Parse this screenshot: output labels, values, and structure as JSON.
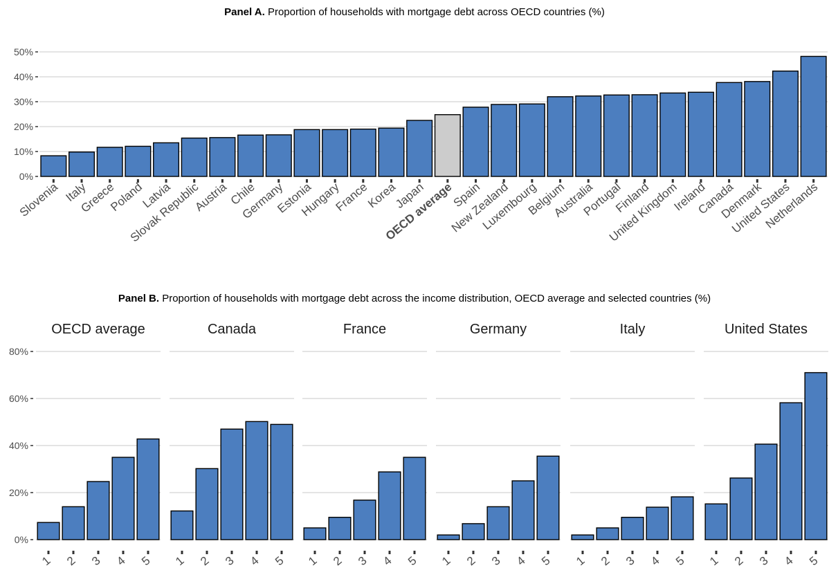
{
  "panel_a": {
    "title_bold": "Panel A.",
    "title_rest": " Proportion of households with mortgage debt across OECD countries (%)"
  },
  "panel_b": {
    "title_bold": "Panel B.",
    "title_rest": " Proportion of households with mortgage debt across the income distribution, OECD average and selected countries (%)"
  },
  "colors": {
    "bar": "#4c7ebf",
    "highlight": "#cccccc",
    "grid": "#d4d4d4",
    "outline": "#000000"
  },
  "chart_data": [
    {
      "type": "bar",
      "ylim": [
        0,
        52
      ],
      "yticks": [
        0,
        10,
        20,
        30,
        40,
        50
      ],
      "ytick_labels": [
        "0%",
        "10%",
        "20%",
        "30%",
        "40%",
        "50%"
      ],
      "grid": true,
      "highlight": "OECD average",
      "categories": [
        "Slovenia",
        "Italy",
        "Greece",
        "Poland",
        "Latvia",
        "Slovak Republic",
        "Austria",
        "Chile",
        "Germany",
        "Estonia",
        "Hungary",
        "France",
        "Korea",
        "Japan",
        "OECD average",
        "Spain",
        "New Zealand",
        "Luxembourg",
        "Belgium",
        "Australia",
        "Portugal",
        "Finland",
        "United Kingdom",
        "Ireland",
        "Canada",
        "Denmark",
        "United States",
        "Netherlands"
      ],
      "values": [
        8.3,
        9.8,
        11.7,
        12.1,
        13.5,
        15.4,
        15.6,
        16.6,
        16.7,
        18.8,
        18.8,
        19.0,
        19.4,
        22.5,
        24.8,
        27.8,
        28.9,
        29.1,
        32.0,
        32.3,
        32.7,
        32.8,
        33.5,
        33.8,
        37.7,
        38.1,
        42.3,
        48.2
      ]
    },
    {
      "type": "bar",
      "ylim": [
        0,
        80
      ],
      "yticks": [
        0,
        20,
        40,
        60,
        80
      ],
      "ytick_labels": [
        "0%",
        "20%",
        "40%",
        "60%",
        "80%"
      ],
      "grid": true,
      "categories": [
        "1",
        "2",
        "3",
        "4",
        "5"
      ],
      "facets": [
        {
          "name": "OECD average",
          "values": [
            7.3,
            14.0,
            24.7,
            35.0,
            42.8
          ]
        },
        {
          "name": "Canada",
          "values": [
            12.2,
            30.2,
            47.0,
            50.2,
            49.0
          ]
        },
        {
          "name": "France",
          "values": [
            5.0,
            9.5,
            16.8,
            28.8,
            35.0
          ]
        },
        {
          "name": "Germany",
          "values": [
            2.0,
            6.8,
            14.0,
            25.0,
            35.5
          ]
        },
        {
          "name": "Italy",
          "values": [
            2.0,
            5.0,
            9.5,
            13.8,
            18.2
          ]
        },
        {
          "name": "United States",
          "values": [
            15.2,
            26.2,
            40.6,
            58.2,
            71.0
          ]
        }
      ]
    }
  ]
}
